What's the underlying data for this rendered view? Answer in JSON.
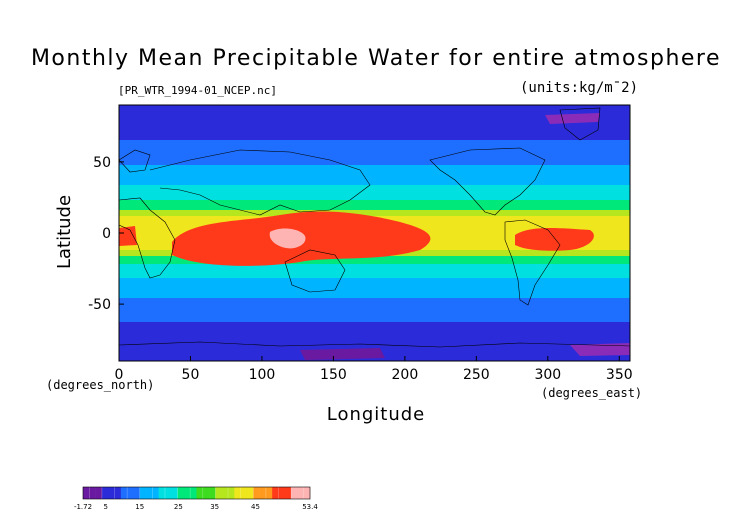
{
  "title": "Monthly Mean Precipitable Water for entire atmosphere",
  "subtitle": "[PR_WTR_1994-01_NCEP.nc]",
  "units": "(units:kg/m¯2)",
  "axes": {
    "x_label": "Longitude",
    "y_label": "Latitude",
    "x_unit_label": "(degrees_east)",
    "y_unit_label": "(degrees_north)",
    "x_ticks": [
      "0",
      "50",
      "100",
      "150",
      "200",
      "250",
      "300",
      "350"
    ],
    "y_ticks": [
      "50",
      "0",
      "-50"
    ],
    "x_range": [
      0,
      357.5
    ],
    "y_range": [
      -90,
      90
    ]
  },
  "colorbar": {
    "labels": [
      "-1.72",
      "5",
      "15",
      "25",
      "35",
      "45",
      "53.4"
    ],
    "colors": [
      "#6a1aa0",
      "#2b2bd9",
      "#1e6fff",
      "#00b4ff",
      "#00e0e0",
      "#00e87a",
      "#3ddc1e",
      "#b6e61e",
      "#f0e61e",
      "#ff9a1e",
      "#ff3a1a",
      "#ffb4b4"
    ]
  },
  "map_colors": {
    "polar": "#2b2bd9",
    "high_lat": "#1e6fff",
    "mid_lat": "#00b4ff",
    "subtropic": "#00e0e0",
    "warm": "#00e87a",
    "tropic_edge": "#b6e61e",
    "tropic": "#f0e61e",
    "wet": "#ff3a1a",
    "wettest": "#ffb4b4",
    "dry_polar": "#8a2cb8"
  }
}
